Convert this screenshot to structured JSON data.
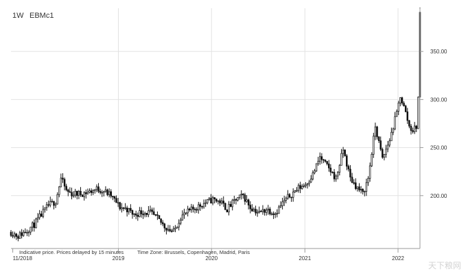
{
  "header": {
    "period": "1W",
    "symbol": "EBMc1"
  },
  "footer": {
    "note": "Indicative price. Prices delayed by 15 minutes",
    "timezone": "Time Zone: Brussels, Copenhagen, Madrid, Paris"
  },
  "watermark_text": "天下粮网",
  "colors": {
    "candle": "#111111",
    "grid": "#e2e2e2",
    "axis": "#9a9a9a",
    "text": "#333333"
  },
  "chart_data": {
    "type": "candlestick",
    "title": "",
    "xlabel": "",
    "ylabel": "",
    "ylim": [
      145,
      395
    ],
    "y_ticks": [
      200,
      250,
      300,
      350
    ],
    "y_tick_labels": [
      "200.00",
      "250.00",
      "300.00",
      "350.00"
    ],
    "x_tick_labels": [
      "11/2018",
      "2019",
      "2020",
      "2021",
      "2022"
    ],
    "grid": true,
    "close_path": [
      [
        "2017-11-06",
        162
      ],
      [
        "2017-12-04",
        158
      ],
      [
        "2018-01-08",
        164
      ],
      [
        "2018-02-05",
        170
      ],
      [
        "2018-03-05",
        180
      ],
      [
        "2018-04-02",
        190
      ],
      [
        "2018-04-30",
        194
      ],
      [
        "2018-05-21",
        218
      ],
      [
        "2018-06-11",
        205
      ],
      [
        "2018-07-02",
        202
      ],
      [
        "2018-08-06",
        202
      ],
      [
        "2018-09-10",
        204
      ],
      [
        "2018-10-08",
        207
      ],
      [
        "2018-11-05",
        205
      ],
      [
        "2018-12-03",
        200
      ],
      [
        "2019-01-07",
        188
      ],
      [
        "2019-02-04",
        186
      ],
      [
        "2019-03-04",
        180
      ],
      [
        "2019-04-01",
        183
      ],
      [
        "2019-05-06",
        182
      ],
      [
        "2019-06-03",
        176
      ],
      [
        "2019-07-01",
        168
      ],
      [
        "2019-08-05",
        162
      ],
      [
        "2019-09-02",
        178
      ],
      [
        "2019-10-07",
        184
      ],
      [
        "2019-11-04",
        188
      ],
      [
        "2019-12-02",
        192
      ],
      [
        "2020-01-06",
        196
      ],
      [
        "2020-02-03",
        194
      ],
      [
        "2020-03-02",
        186
      ],
      [
        "2020-04-06",
        196
      ],
      [
        "2020-05-04",
        200
      ],
      [
        "2020-06-01",
        188
      ],
      [
        "2020-07-06",
        182
      ],
      [
        "2020-08-03",
        186
      ],
      [
        "2020-09-07",
        182
      ],
      [
        "2020-10-05",
        192
      ],
      [
        "2020-11-02",
        200
      ],
      [
        "2020-12-07",
        208
      ],
      [
        "2021-01-04",
        212
      ],
      [
        "2021-02-01",
        222
      ],
      [
        "2021-03-01",
        240
      ],
      [
        "2021-04-05",
        228
      ],
      [
        "2021-05-03",
        218
      ],
      [
        "2021-05-31",
        248
      ],
      [
        "2021-06-28",
        218
      ],
      [
        "2021-07-26",
        208
      ],
      [
        "2021-08-16",
        202
      ],
      [
        "2021-09-06",
        218
      ],
      [
        "2021-10-04",
        272
      ],
      [
        "2021-11-01",
        238
      ],
      [
        "2021-11-29",
        258
      ],
      [
        "2021-12-27",
        286
      ],
      [
        "2022-01-10",
        304
      ],
      [
        "2022-01-31",
        286
      ],
      [
        "2022-02-14",
        272
      ],
      [
        "2022-02-28",
        268
      ],
      [
        "2022-03-07",
        270
      ],
      [
        "2022-03-14",
        272
      ],
      [
        "2022-03-21",
        302
      ],
      [
        "2022-03-28",
        390
      ]
    ]
  }
}
